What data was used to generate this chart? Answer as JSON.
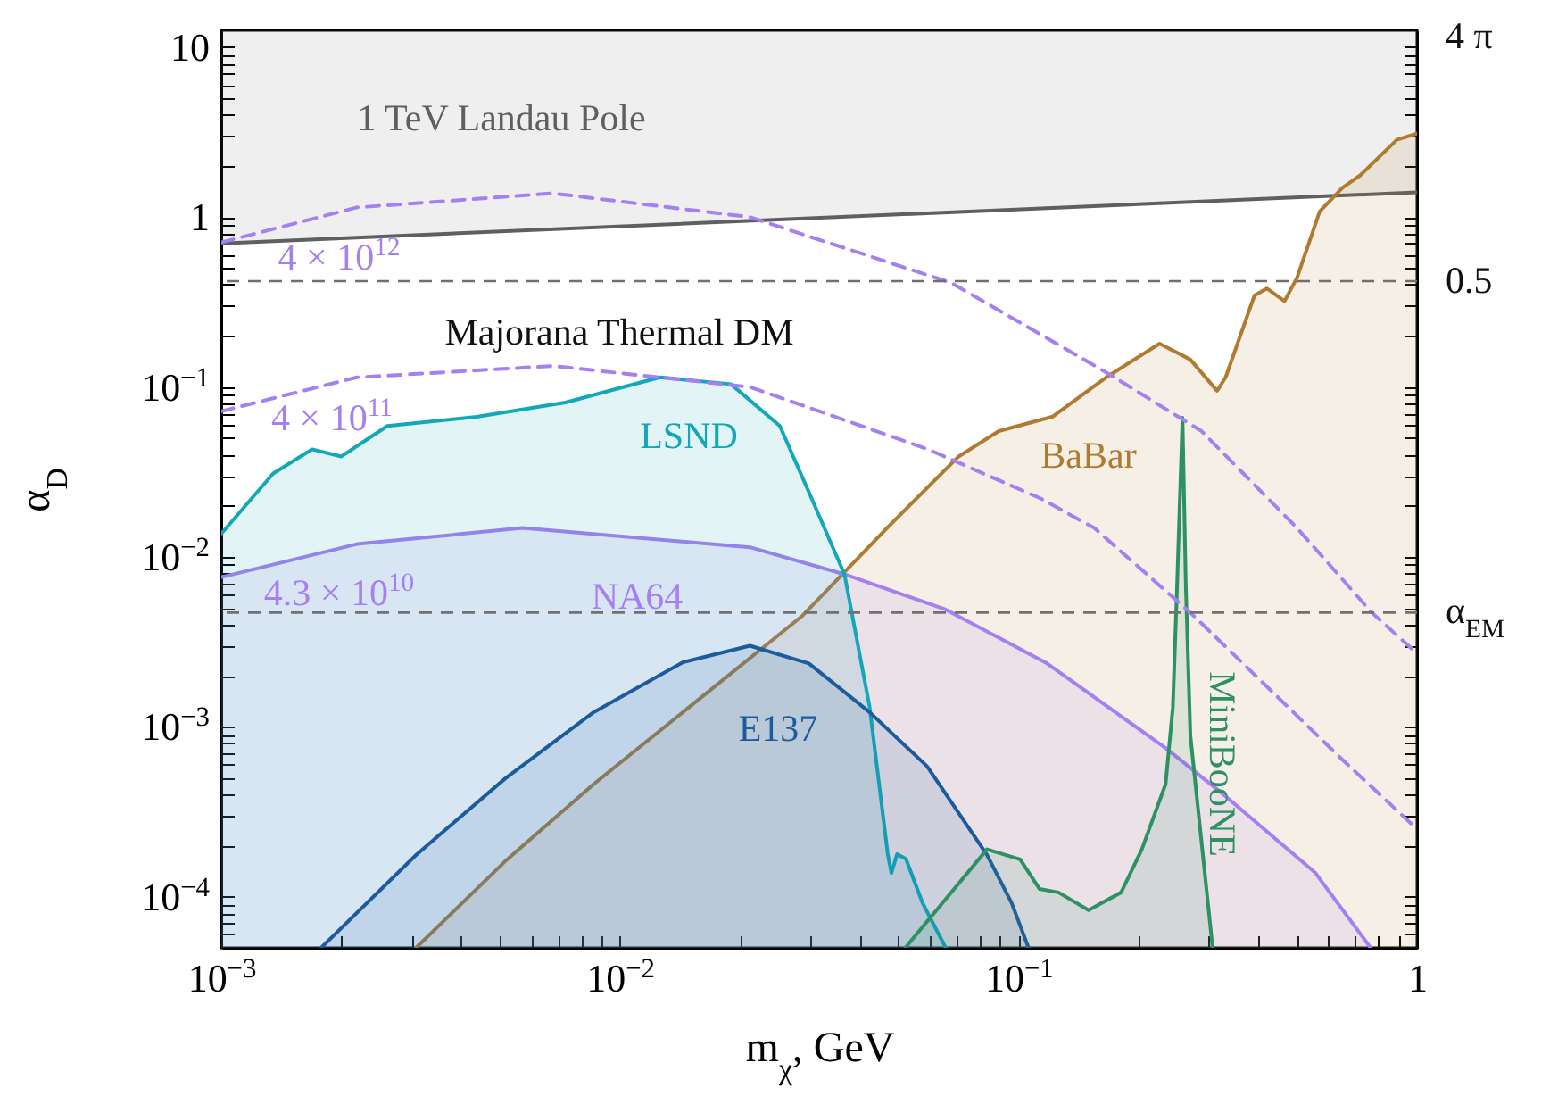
{
  "chart_data": {
    "type": "line",
    "xlabel": "m$_{χ}$, GeV",
    "ylabel": "α$_{D}$",
    "log": "xy",
    "xlim": [
      0.001,
      1
    ],
    "xticks": [
      {
        "value": 0.001,
        "label": "10$^{−3}$"
      },
      {
        "value": 0.002,
        "label": null
      },
      {
        "value": 0.003,
        "label": null
      },
      {
        "value": 0.004,
        "label": null
      },
      {
        "value": 0.005,
        "label": null
      },
      {
        "value": 0.006,
        "label": null
      },
      {
        "value": 0.007,
        "label": null
      },
      {
        "value": 0.008,
        "label": null
      },
      {
        "value": 0.009,
        "label": null
      },
      {
        "value": 0.01,
        "label": "10$^{−2}$"
      },
      {
        "value": 0.02,
        "label": null
      },
      {
        "value": 0.03,
        "label": null
      },
      {
        "value": 0.04,
        "label": null
      },
      {
        "value": 0.05,
        "label": null
      },
      {
        "value": 0.06,
        "label": null
      },
      {
        "value": 0.07,
        "label": null
      },
      {
        "value": 0.08,
        "label": null
      },
      {
        "value": 0.09,
        "label": null
      },
      {
        "value": 0.1,
        "label": "10$^{−1}$"
      },
      {
        "value": 0.2,
        "label": null
      },
      {
        "value": 0.3,
        "label": null
      },
      {
        "value": 0.4,
        "label": null
      },
      {
        "value": 0.5,
        "label": null
      },
      {
        "value": 0.6,
        "label": null
      },
      {
        "value": 0.7,
        "label": null
      },
      {
        "value": 0.8,
        "label": null
      },
      {
        "value": 0.9,
        "label": null
      },
      1
    ],
    "ylim": [
      5e-05,
      12.566
    ],
    "yticks": [
      {
        "value": 5e-05,
        "label": null
      },
      {
        "value": 6e-05,
        "label": null
      },
      {
        "value": 7e-05,
        "label": null
      },
      {
        "value": 8e-05,
        "label": null
      },
      {
        "value": 9e-05,
        "label": null
      },
      {
        "value": 0.0001,
        "label": "10$^{−4}$"
      },
      {
        "value": 0.0002,
        "label": null
      },
      {
        "value": 0.0003,
        "label": null
      },
      {
        "value": 0.0004,
        "label": null
      },
      {
        "value": 0.0005,
        "label": null
      },
      {
        "value": 0.0006,
        "label": null
      },
      {
        "value": 0.0007,
        "label": null
      },
      {
        "value": 0.0008,
        "label": null
      },
      {
        "value": 0.0009,
        "label": null
      },
      {
        "value": 0.001,
        "label": "10$^{−3}$"
      },
      {
        "value": 0.002,
        "label": null
      },
      {
        "value": 0.003,
        "label": null
      },
      {
        "value": 0.004,
        "label": null
      },
      {
        "value": 0.005,
        "label": null
      },
      {
        "value": 0.006,
        "label": null
      },
      {
        "value": 0.007,
        "label": null
      },
      {
        "value": 0.008,
        "label": null
      },
      {
        "value": 0.009,
        "label": null
      },
      {
        "value": 0.01,
        "label": "10$^{−2}$"
      },
      {
        "value": 0.02,
        "label": null
      },
      {
        "value": 0.03,
        "label": null
      },
      {
        "value": 0.04,
        "label": null
      },
      {
        "value": 0.05,
        "label": null
      },
      {
        "value": 0.06,
        "label": null
      },
      {
        "value": 0.07,
        "label": null
      },
      {
        "value": 0.08,
        "label": null
      },
      {
        "value": 0.09,
        "label": null
      },
      {
        "value": 0.1,
        "label": "10$^{−1}$"
      },
      {
        "value": 0.2,
        "label": null
      },
      {
        "value": 0.3,
        "label": null
      },
      {
        "value": 0.4,
        "label": null
      },
      {
        "value": 0.5,
        "label": null
      },
      {
        "value": 0.6,
        "label": null
      },
      {
        "value": 0.7,
        "label": null
      },
      {
        "value": 0.8,
        "label": null
      },
      {
        "value": 0.9,
        "label": null
      },
      1,
      {
        "value": 2,
        "label": null
      },
      {
        "value": 3,
        "label": null
      },
      {
        "value": 4,
        "label": null
      },
      {
        "value": 5,
        "label": null
      },
      {
        "value": 6,
        "label": null
      },
      {
        "value": 7,
        "label": null
      },
      {
        "value": 8,
        "label": null
      },
      {
        "value": 9,
        "label": null
      },
      10
    ],
    "series": [
      {
        "name": "1 TeV Landau Pole",
        "color": "#5f5f5f",
        "x": [
          0.001,
          1
        ],
        "values": [
          0.7,
          1.4
        ]
      },
      {
        "name": "BaBar",
        "type": "area",
        "color": "#b07a30",
        "x": [
          0.00308,
          0.00516,
          0.0086,
          0.0144,
          0.0287,
          0.0468,
          0.0708,
          0.0893,
          0.122,
          0.166,
          0.226,
          0.27,
          0.315,
          0.331,
          0.391,
          0.42,
          0.465,
          0.5,
          0.57,
          0.65,
          0.72,
          0.89,
          1
        ],
        "values": [
          5e-05,
          0.000162,
          0.00046,
          0.00122,
          0.0045,
          0.0148,
          0.039,
          0.055,
          0.067,
          0.114,
          0.18,
          0.145,
          0.095,
          0.114,
          0.346,
          0.38,
          0.32,
          0.44,
          1.08,
          1.49,
          1.76,
          2.85,
          3.1
        ]
      },
      {
        "name": "NA64",
        "type": "area",
        "color": "#a67ff2",
        "x": [
          0.001,
          0.00219,
          0.0057,
          0.0212,
          0.0366,
          0.0657,
          0.118,
          0.234,
          0.331,
          0.556,
          0.765
        ],
        "values": [
          0.0076,
          0.0119,
          0.0148,
          0.0114,
          0.0079,
          0.0049,
          0.00236,
          0.00075,
          0.00039,
          0.000138,
          5e-05
        ]
      },
      {
        "name": "LSND",
        "type": "area",
        "color": "#13a8b8",
        "x": [
          0.001,
          0.00135,
          0.00169,
          0.002,
          0.00261,
          0.00437,
          0.0073,
          0.0126,
          0.019,
          0.0252,
          0.0303,
          0.0366,
          0.0423,
          0.047,
          0.048,
          0.0496,
          0.0522,
          0.0575,
          0.0657
        ],
        "values": [
          0.0137,
          0.031,
          0.043,
          0.039,
          0.059,
          0.0667,
          0.081,
          0.114,
          0.104,
          0.059,
          0.022,
          0.0079,
          0.00132,
          0.000178,
          0.000138,
          0.000178,
          0.000167,
          9.16e-05,
          5e-05
        ]
      },
      {
        "name": "E137",
        "type": "area",
        "color": "#1c5c9e",
        "x": [
          0.00178,
          0.00308,
          0.00516,
          0.0086,
          0.0144,
          0.0212,
          0.0298,
          0.0423,
          0.059,
          0.0834,
          0.0962,
          0.106
        ],
        "values": [
          5e-05,
          0.000176,
          0.000497,
          0.00122,
          0.0024,
          0.003,
          0.00236,
          0.00122,
          0.000585,
          0.000176,
          9.16e-05,
          5e-05
        ]
      },
      {
        "name": "MiniBooNE",
        "type": "area",
        "color": "#2e9163",
        "x": [
          0.052,
          0.0834,
          0.101,
          0.113,
          0.126,
          0.15,
          0.181,
          0.204,
          0.234,
          0.244,
          0.25,
          0.258,
          0.263,
          0.27,
          0.307
        ],
        "values": [
          5e-05,
          0.00019,
          0.000166,
          0.000111,
          0.000106,
          8.33e-05,
          0.000106,
          0.00019,
          0.00046,
          0.0013,
          0.0067,
          0.066,
          0.0067,
          0.00089,
          5e-05
        ]
      },
      {
        "name": "4 × 10$^{12}$",
        "color": "#a67ff2",
        "line_style": "dashed",
        "x": [
          0.001,
          0.00219,
          0.0068,
          0.0212,
          0.0679,
          0.166,
          0.288,
          0.5,
          0.77,
          1
        ],
        "values": [
          0.71,
          1.14,
          1.38,
          1.0,
          0.41,
          0.122,
          0.055,
          0.0148,
          0.0047,
          0.0027
        ]
      },
      {
        "name": "4 × 10$^{11}$",
        "color": "#a67ff2",
        "line_style": "dashed",
        "x": [
          0.001,
          0.00219,
          0.0068,
          0.0212,
          0.0593,
          0.114,
          0.155,
          0.27,
          0.65,
          1
        ],
        "values": [
          0.072,
          0.114,
          0.133,
          0.1,
          0.043,
          0.022,
          0.0148,
          0.0047,
          0.00064,
          0.00025
        ]
      }
    ],
    "ref_lines": [
      {
        "axis": "y",
        "value": 0.42,
        "color": "#707070",
        "line_style": "dashed"
      },
      {
        "axis": "y",
        "value": 0.0047,
        "color": "#707070",
        "line_style": "dashed"
      }
    ],
    "annotations": [
      "Majorana Thermal DM",
      "4.3 × 10$^{10}$",
      "4 π",
      "0.5",
      "α$_{EM}$"
    ]
  }
}
